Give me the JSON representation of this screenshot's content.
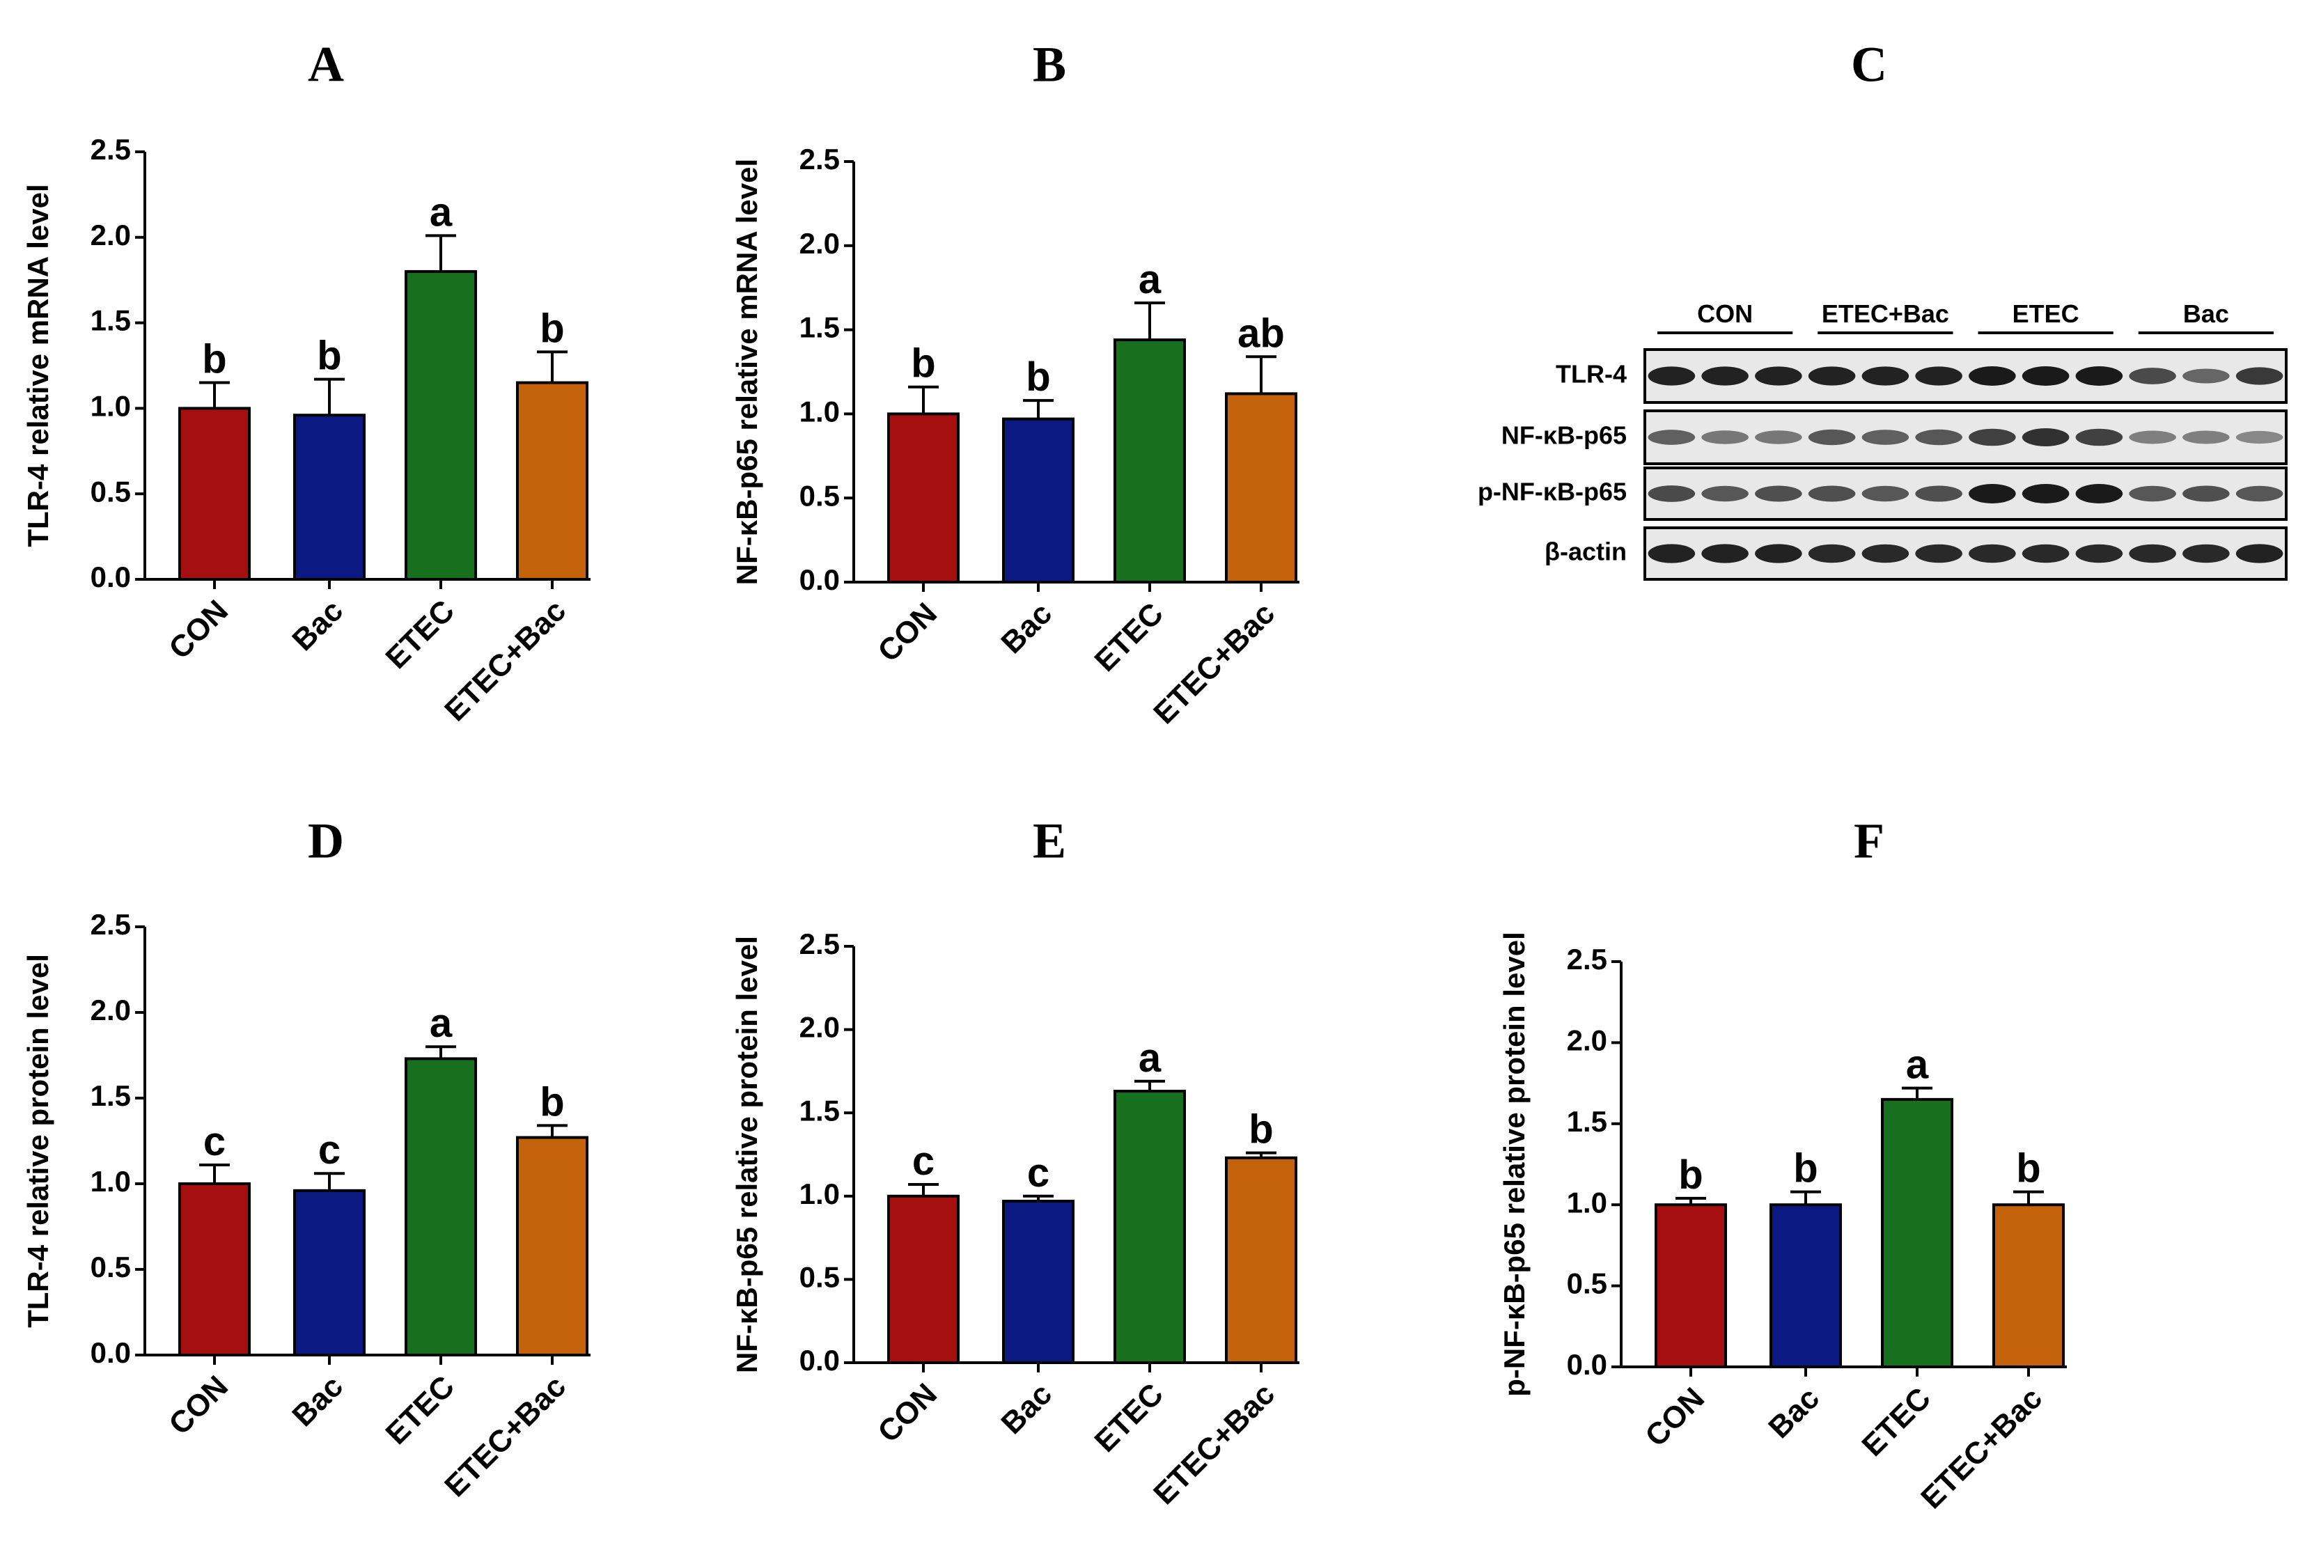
{
  "colors": {
    "CON": "#a50f0f",
    "Bac": "#0a1a82",
    "ETEC": "#17701d",
    "ETEC+Bac": "#c4620b",
    "axis": "#000000",
    "blot_band": "#1a1a1a",
    "blot_bg": "#e8e8e8"
  },
  "chart_data": [
    {
      "panel": "A",
      "type": "bar",
      "title": "A",
      "ylabel": "TLR-4 relative mRNA level",
      "categories": [
        "CON",
        "Bac",
        "ETEC",
        "ETEC+Bac"
      ],
      "values": [
        1.0,
        0.96,
        1.8,
        1.15
      ],
      "errors": [
        0.15,
        0.21,
        0.21,
        0.18
      ],
      "significance": [
        "b",
        "b",
        "a",
        "b"
      ],
      "ylim": [
        0,
        2.5
      ],
      "yticks": [
        "0.0",
        "0.5",
        "1.0",
        "1.5",
        "2.0",
        "2.5"
      ]
    },
    {
      "panel": "B",
      "type": "bar",
      "title": "B",
      "ylabel": "NF-κB-p65 relative mRNA level",
      "categories": [
        "CON",
        "Bac",
        "ETEC",
        "ETEC+Bac"
      ],
      "values": [
        1.0,
        0.97,
        1.44,
        1.12
      ],
      "errors": [
        0.16,
        0.11,
        0.22,
        0.22
      ],
      "significance": [
        "b",
        "b",
        "a",
        "ab"
      ],
      "ylim": [
        0,
        2.5
      ],
      "yticks": [
        "0.0",
        "0.5",
        "1.0",
        "1.5",
        "2.0",
        "2.5"
      ]
    },
    {
      "panel": "D",
      "type": "bar",
      "title": "D",
      "ylabel": "TLR-4 relative protein level",
      "categories": [
        "CON",
        "Bac",
        "ETEC",
        "ETEC+Bac"
      ],
      "values": [
        1.0,
        0.96,
        1.73,
        1.27
      ],
      "errors": [
        0.11,
        0.1,
        0.07,
        0.07
      ],
      "significance": [
        "c",
        "c",
        "a",
        "b"
      ],
      "ylim": [
        0,
        2.5
      ],
      "yticks": [
        "0.0",
        "0.5",
        "1.0",
        "1.5",
        "2.0",
        "2.5"
      ]
    },
    {
      "panel": "E",
      "type": "bar",
      "title": "E",
      "ylabel": "NF-κB-p65 relative protein level",
      "categories": [
        "CON",
        "Bac",
        "ETEC",
        "ETEC+Bac"
      ],
      "values": [
        1.0,
        0.97,
        1.63,
        1.23
      ],
      "errors": [
        0.07,
        0.03,
        0.06,
        0.03
      ],
      "significance": [
        "c",
        "c",
        "a",
        "b"
      ],
      "ylim": [
        0,
        2.5
      ],
      "yticks": [
        "0.0",
        "0.5",
        "1.0",
        "1.5",
        "2.0",
        "2.5"
      ]
    },
    {
      "panel": "F",
      "type": "bar",
      "title": "F",
      "ylabel": "p-NF-κB-p65 relative protein level",
      "categories": [
        "CON",
        "Bac",
        "ETEC",
        "ETEC+Bac"
      ],
      "values": [
        1.0,
        1.0,
        1.65,
        1.0
      ],
      "errors": [
        0.04,
        0.08,
        0.07,
        0.08
      ],
      "significance": [
        "b",
        "b",
        "a",
        "b"
      ],
      "ylim": [
        0,
        2.5
      ],
      "yticks": [
        "0.0",
        "0.5",
        "1.0",
        "1.5",
        "2.0",
        "2.5"
      ]
    }
  ],
  "western_blot": {
    "panel": "C",
    "title": "C",
    "groups": [
      "CON",
      "ETEC+Bac",
      "ETEC",
      "Bac"
    ],
    "rows": [
      {
        "label": "TLR-4",
        "intensity": [
          0.95,
          0.95,
          0.95,
          0.95,
          0.95,
          0.95,
          1.0,
          1.0,
          1.0,
          0.7,
          0.5,
          0.8
        ]
      },
      {
        "label": "NF-κB-p65",
        "intensity": [
          0.55,
          0.4,
          0.4,
          0.6,
          0.55,
          0.6,
          0.75,
          0.85,
          0.75,
          0.35,
          0.35,
          0.3
        ]
      },
      {
        "label": "p-NF-κB-p65",
        "intensity": [
          0.7,
          0.6,
          0.65,
          0.65,
          0.6,
          0.65,
          1.0,
          1.0,
          1.0,
          0.6,
          0.65,
          0.6
        ]
      },
      {
        "label": "β-actin",
        "intensity": [
          0.95,
          0.95,
          0.95,
          0.9,
          0.9,
          0.9,
          0.9,
          0.9,
          0.9,
          0.9,
          0.9,
          0.95
        ]
      }
    ]
  }
}
